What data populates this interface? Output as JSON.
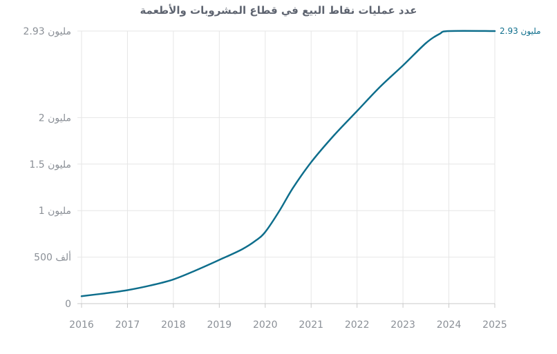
{
  "chart_data": {
    "type": "line",
    "title": "عدد عمليات نقاط البيع في قطاع المشروبات والأطعمة",
    "xlabel": "",
    "ylabel": "",
    "x": [
      2016,
      2016.5,
      2017,
      2017.5,
      2018,
      2018.5,
      2019,
      2019.5,
      2019.8,
      2020,
      2020.3,
      2020.6,
      2021,
      2021.5,
      2022,
      2022.5,
      2023,
      2023.5,
      2023.8,
      2024,
      2025
    ],
    "y": [
      0.08,
      0.11,
      0.145,
      0.195,
      0.26,
      0.36,
      0.47,
      0.585,
      0.68,
      0.77,
      0.99,
      1.24,
      1.52,
      1.81,
      2.07,
      2.33,
      2.56,
      2.8,
      2.9,
      2.93,
      2.93
    ],
    "xlim": [
      2016,
      2025
    ],
    "ylim": [
      0,
      2.93
    ],
    "x_ticks": [
      "2016",
      "2017",
      "2018",
      "2019",
      "2020",
      "2021",
      "2022",
      "2023",
      "2024",
      "2025"
    ],
    "y_ticks": [
      {
        "value": 0,
        "label": "0"
      },
      {
        "value": 0.5,
        "label": "500 ألف"
      },
      {
        "value": 1,
        "label": "1 مليون"
      },
      {
        "value": 1.5,
        "label": "1.5 مليون"
      },
      {
        "value": 2,
        "label": "2 مليون"
      },
      {
        "value": 2.93,
        "label": "2.93 مليون"
      }
    ],
    "end_label": "2.93 مليون",
    "grid": true,
    "line_color": "#0e6e8c"
  }
}
